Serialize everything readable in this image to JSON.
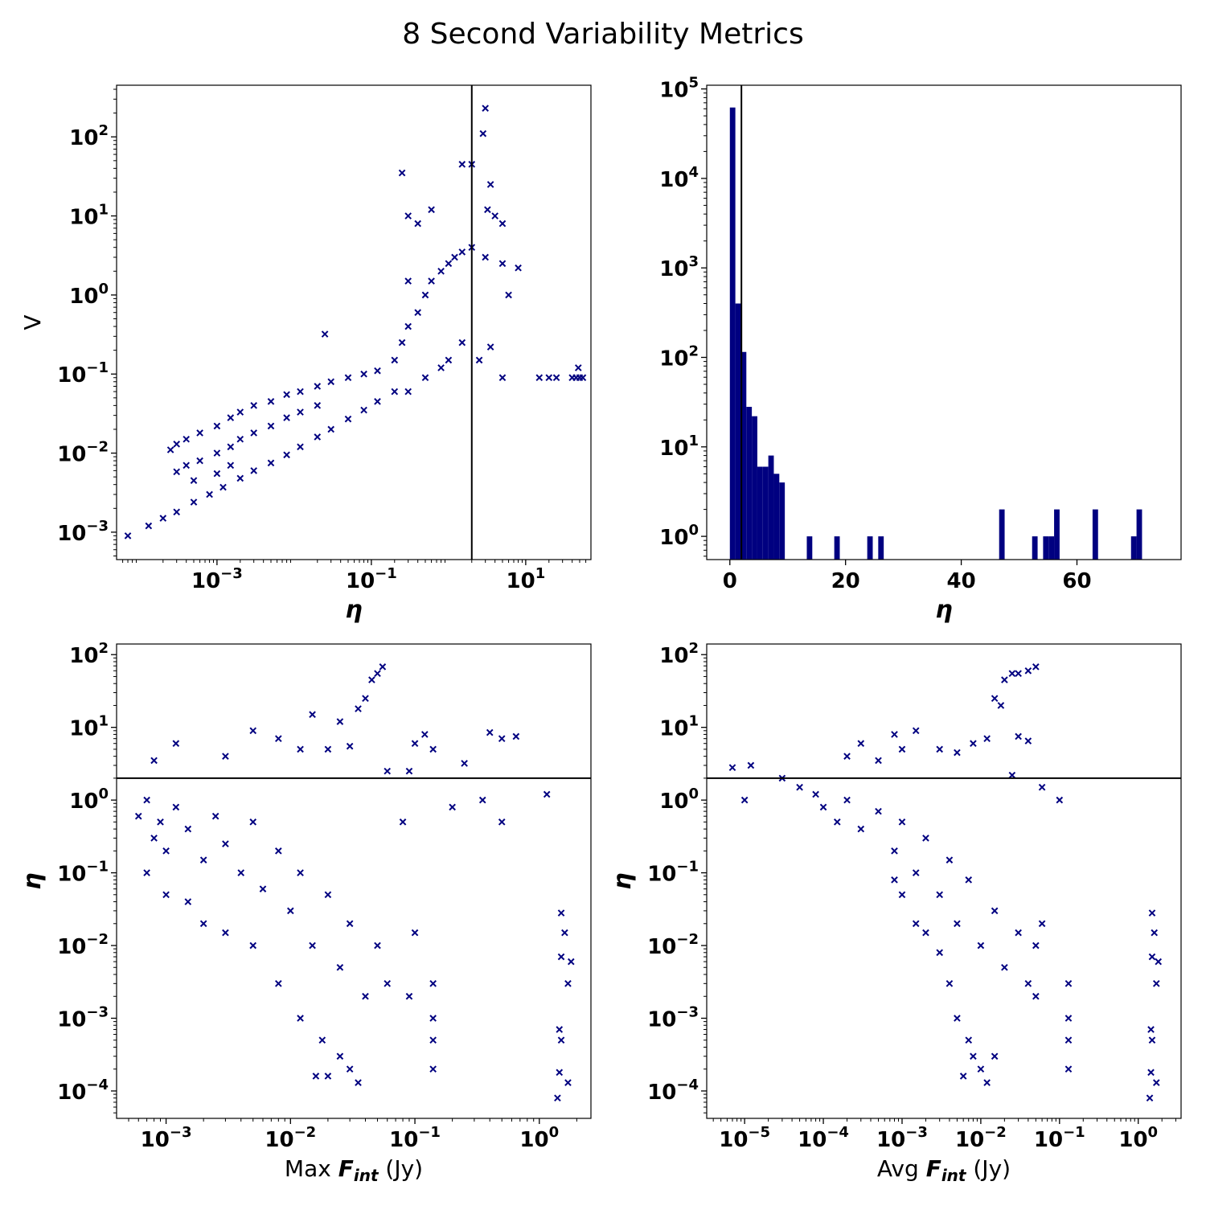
{
  "figure": {
    "title": "8 Second Variability Metrics",
    "marker_color": "#000080",
    "line_color": "#000000"
  },
  "chart_data": [
    {
      "id": "p1",
      "type": "scatter",
      "xscale": "log",
      "yscale": "log",
      "xlim": [
        5e-05,
        70
      ],
      "ylim": [
        0.00045,
        450
      ],
      "xlabel": "η",
      "ylabel": "V",
      "xticks": [
        {
          "v": 0.001,
          "base": "10",
          "exp": "−3"
        },
        {
          "v": 0.1,
          "base": "10",
          "exp": "−1"
        },
        {
          "v": 10,
          "base": "10",
          "exp": "1"
        }
      ],
      "yticks": [
        {
          "v": 0.001,
          "base": "10",
          "exp": "−3"
        },
        {
          "v": 0.01,
          "base": "10",
          "exp": "−2"
        },
        {
          "v": 0.1,
          "base": "10",
          "exp": "−1"
        },
        {
          "v": 1,
          "base": "10",
          "exp": "0"
        },
        {
          "v": 10,
          "base": "10",
          "exp": "1"
        },
        {
          "v": 100,
          "base": "10",
          "exp": "2"
        }
      ],
      "vline": 2,
      "marker": "x",
      "points": [
        [
          7e-05,
          0.0009
        ],
        [
          0.00013,
          0.0012
        ],
        [
          0.0002,
          0.0015
        ],
        [
          0.0003,
          0.0018
        ],
        [
          0.0005,
          0.0024
        ],
        [
          0.0008,
          0.003
        ],
        [
          0.0012,
          0.0037
        ],
        [
          0.002,
          0.0048
        ],
        [
          0.003,
          0.006
        ],
        [
          0.005,
          0.0075
        ],
        [
          0.008,
          0.0095
        ],
        [
          0.012,
          0.012
        ],
        [
          0.02,
          0.016
        ],
        [
          0.03,
          0.02
        ],
        [
          0.05,
          0.027
        ],
        [
          0.08,
          0.035
        ],
        [
          0.12,
          0.045
        ],
        [
          0.2,
          0.06
        ],
        [
          0.00025,
          0.011
        ],
        [
          0.0003,
          0.013
        ],
        [
          0.0004,
          0.015
        ],
        [
          0.0006,
          0.018
        ],
        [
          0.001,
          0.022
        ],
        [
          0.0015,
          0.028
        ],
        [
          0.002,
          0.033
        ],
        [
          0.003,
          0.04
        ],
        [
          0.005,
          0.045
        ],
        [
          0.008,
          0.055
        ],
        [
          0.012,
          0.06
        ],
        [
          0.02,
          0.07
        ],
        [
          0.03,
          0.08
        ],
        [
          0.05,
          0.09
        ],
        [
          0.08,
          0.1
        ],
        [
          0.12,
          0.11
        ],
        [
          0.0004,
          0.007
        ],
        [
          0.0006,
          0.008
        ],
        [
          0.001,
          0.01
        ],
        [
          0.0015,
          0.012
        ],
        [
          0.002,
          0.015
        ],
        [
          0.003,
          0.018
        ],
        [
          0.005,
          0.022
        ],
        [
          0.008,
          0.028
        ],
        [
          0.012,
          0.033
        ],
        [
          0.02,
          0.04
        ],
        [
          0.0003,
          0.0058
        ],
        [
          0.0005,
          0.0045
        ],
        [
          0.001,
          0.0055
        ],
        [
          0.0015,
          0.007
        ],
        [
          0.025,
          0.32
        ],
        [
          0.2,
          0.15
        ],
        [
          0.25,
          0.25
        ],
        [
          0.3,
          0.4
        ],
        [
          0.4,
          0.6
        ],
        [
          0.5,
          1.0
        ],
        [
          0.6,
          1.5
        ],
        [
          0.8,
          2.0
        ],
        [
          1.0,
          2.5
        ],
        [
          1.2,
          3.0
        ],
        [
          1.5,
          3.5
        ],
        [
          2.0,
          4.0
        ],
        [
          3.0,
          3.0
        ],
        [
          5.0,
          2.5
        ],
        [
          8.0,
          2.2
        ],
        [
          6.0,
          1.0
        ],
        [
          0.3,
          0.06
        ],
        [
          0.5,
          0.09
        ],
        [
          0.8,
          0.12
        ],
        [
          1.0,
          0.15
        ],
        [
          1.5,
          0.25
        ],
        [
          2.5,
          0.15
        ],
        [
          3.5,
          0.22
        ],
        [
          5.0,
          0.09
        ],
        [
          0.3,
          1.5
        ],
        [
          0.4,
          8
        ],
        [
          0.6,
          12
        ],
        [
          0.3,
          10
        ],
        [
          0.25,
          35
        ],
        [
          1.5,
          45
        ],
        [
          2.0,
          45
        ],
        [
          3.0,
          230
        ],
        [
          2.8,
          110
        ],
        [
          3.5,
          25
        ],
        [
          3.2,
          12
        ],
        [
          4.0,
          10
        ],
        [
          5.0,
          8
        ],
        [
          15,
          0.09
        ],
        [
          20,
          0.09
        ],
        [
          25,
          0.09
        ],
        [
          40,
          0.09
        ],
        [
          45,
          0.09
        ],
        [
          50,
          0.09
        ],
        [
          55,
          0.09
        ],
        [
          48,
          0.12
        ]
      ]
    },
    {
      "id": "p2",
      "type": "bar",
      "xscale": "linear",
      "yscale": "log",
      "xlim": [
        -4,
        78
      ],
      "ylim": [
        0.55,
        110000
      ],
      "xlabel": "η",
      "xticks": [
        {
          "v": 0,
          "text": "0"
        },
        {
          "v": 20,
          "text": "20"
        },
        {
          "v": 40,
          "text": "40"
        },
        {
          "v": 60,
          "text": "60"
        }
      ],
      "yticks": [
        {
          "v": 1,
          "base": "10",
          "exp": "0"
        },
        {
          "v": 10,
          "base": "10",
          "exp": "1"
        },
        {
          "v": 100,
          "base": "10",
          "exp": "2"
        },
        {
          "v": 1000,
          "base": "10",
          "exp": "3"
        },
        {
          "v": 10000,
          "base": "10",
          "exp": "4"
        },
        {
          "v": 100000,
          "base": "10",
          "exp": "5"
        }
      ],
      "vline": 2,
      "bin_width": 0.95,
      "bins": [
        {
          "x": 0,
          "count": 62000
        },
        {
          "x": 0.95,
          "count": 400
        },
        {
          "x": 1.9,
          "count": 115
        },
        {
          "x": 2.85,
          "count": 28
        },
        {
          "x": 3.8,
          "count": 22
        },
        {
          "x": 4.75,
          "count": 6
        },
        {
          "x": 5.7,
          "count": 6
        },
        {
          "x": 6.65,
          "count": 8
        },
        {
          "x": 7.6,
          "count": 5
        },
        {
          "x": 8.55,
          "count": 4
        },
        {
          "x": 13.3,
          "count": 1
        },
        {
          "x": 18.05,
          "count": 1
        },
        {
          "x": 23.75,
          "count": 1
        },
        {
          "x": 25.65,
          "count": 1
        },
        {
          "x": 46.55,
          "count": 2
        },
        {
          "x": 52.25,
          "count": 1
        },
        {
          "x": 54.15,
          "count": 1
        },
        {
          "x": 55.1,
          "count": 1
        },
        {
          "x": 56.05,
          "count": 2
        },
        {
          "x": 62.7,
          "count": 2
        },
        {
          "x": 69.35,
          "count": 1
        },
        {
          "x": 70.3,
          "count": 2
        }
      ]
    },
    {
      "id": "p3",
      "type": "scatter",
      "xscale": "log",
      "yscale": "log",
      "xlim": [
        0.0004,
        2.6
      ],
      "ylim": [
        4.2e-05,
        140
      ],
      "xlabel_prefix": "Max ",
      "xlabel_var": "F",
      "xlabel_sub": "int",
      "xlabel_unit": " (Jy)",
      "ylabel": "η",
      "xticks": [
        {
          "v": 0.001,
          "base": "10",
          "exp": "−3"
        },
        {
          "v": 0.01,
          "base": "10",
          "exp": "−2"
        },
        {
          "v": 0.1,
          "base": "10",
          "exp": "−1"
        },
        {
          "v": 1,
          "base": "10",
          "exp": "0"
        }
      ],
      "yticks": [
        {
          "v": 0.0001,
          "base": "10",
          "exp": "−4"
        },
        {
          "v": 0.001,
          "base": "10",
          "exp": "−3"
        },
        {
          "v": 0.01,
          "base": "10",
          "exp": "−2"
        },
        {
          "v": 0.1,
          "base": "10",
          "exp": "−1"
        },
        {
          "v": 1,
          "base": "10",
          "exp": "0"
        },
        {
          "v": 10,
          "base": "10",
          "exp": "1"
        },
        {
          "v": 100,
          "base": "10",
          "exp": "2"
        }
      ],
      "hline": 2,
      "marker": "x",
      "points": [
        [
          0.0006,
          0.6
        ],
        [
          0.0007,
          1.0
        ],
        [
          0.0008,
          0.3
        ],
        [
          0.0009,
          0.5
        ],
        [
          0.001,
          0.2
        ],
        [
          0.0012,
          0.8
        ],
        [
          0.0015,
          0.4
        ],
        [
          0.002,
          0.15
        ],
        [
          0.0025,
          0.6
        ],
        [
          0.003,
          0.25
        ],
        [
          0.004,
          0.1
        ],
        [
          0.005,
          0.5
        ],
        [
          0.006,
          0.06
        ],
        [
          0.008,
          0.2
        ],
        [
          0.01,
          0.03
        ],
        [
          0.012,
          0.1
        ],
        [
          0.015,
          0.01
        ],
        [
          0.02,
          0.05
        ],
        [
          0.025,
          0.005
        ],
        [
          0.03,
          0.02
        ],
        [
          0.04,
          0.002
        ],
        [
          0.05,
          0.01
        ],
        [
          0.06,
          0.003
        ],
        [
          0.0007,
          0.1
        ],
        [
          0.001,
          0.05
        ],
        [
          0.0015,
          0.04
        ],
        [
          0.002,
          0.02
        ],
        [
          0.003,
          0.015
        ],
        [
          0.005,
          0.01
        ],
        [
          0.008,
          0.003
        ],
        [
          0.012,
          0.001
        ],
        [
          0.018,
          0.0005
        ],
        [
          0.02,
          0.00016
        ],
        [
          0.025,
          0.0003
        ],
        [
          0.03,
          0.0002
        ],
        [
          0.035,
          0.00013
        ],
        [
          0.016,
          0.00016
        ],
        [
          0.0008,
          3.5
        ],
        [
          0.0012,
          6.0
        ],
        [
          0.003,
          4.0
        ],
        [
          0.005,
          9.0
        ],
        [
          0.008,
          7.0
        ],
        [
          0.012,
          5.0
        ],
        [
          0.02,
          5.0
        ],
        [
          0.03,
          5.5
        ],
        [
          0.04,
          25
        ],
        [
          0.045,
          45
        ],
        [
          0.05,
          55
        ],
        [
          0.055,
          68
        ],
        [
          0.035,
          18
        ],
        [
          0.025,
          12
        ],
        [
          0.015,
          15
        ],
        [
          0.1,
          6
        ],
        [
          0.12,
          8
        ],
        [
          0.14,
          5
        ],
        [
          0.09,
          2.5
        ],
        [
          0.2,
          0.8
        ],
        [
          0.25,
          3.2
        ],
        [
          0.35,
          1.0
        ],
        [
          0.4,
          8.5
        ],
        [
          0.5,
          7.0
        ],
        [
          0.65,
          7.5
        ],
        [
          0.5,
          0.5
        ],
        [
          1.15,
          1.2
        ],
        [
          0.08,
          0.5
        ],
        [
          0.06,
          2.5
        ],
        [
          0.14,
          0.003
        ],
        [
          0.14,
          0.001
        ],
        [
          0.14,
          0.0005
        ],
        [
          0.14,
          0.0002
        ],
        [
          0.1,
          0.015
        ],
        [
          0.09,
          0.002
        ],
        [
          1.5,
          0.028
        ],
        [
          1.6,
          0.015
        ],
        [
          1.5,
          0.007
        ],
        [
          1.7,
          0.003
        ],
        [
          1.45,
          0.0007
        ],
        [
          1.5,
          0.0005
        ],
        [
          1.45,
          0.00018
        ],
        [
          1.7,
          0.00013
        ],
        [
          1.4,
          8e-05
        ],
        [
          1.8,
          0.006
        ]
      ]
    },
    {
      "id": "p4",
      "type": "scatter",
      "xscale": "log",
      "yscale": "log",
      "xlim": [
        3.3e-06,
        3.5
      ],
      "ylim": [
        4.2e-05,
        140
      ],
      "xlabel_prefix": "Avg ",
      "xlabel_var": "F",
      "xlabel_sub": "int",
      "xlabel_unit": " (Jy)",
      "ylabel": "η",
      "xticks": [
        {
          "v": 1e-05,
          "base": "10",
          "exp": "−5"
        },
        {
          "v": 0.0001,
          "base": "10",
          "exp": "−4"
        },
        {
          "v": 0.001,
          "base": "10",
          "exp": "−3"
        },
        {
          "v": 0.01,
          "base": "10",
          "exp": "−2"
        },
        {
          "v": 0.1,
          "base": "10",
          "exp": "−1"
        },
        {
          "v": 1,
          "base": "10",
          "exp": "0"
        }
      ],
      "yticks": [
        {
          "v": 0.0001,
          "base": "10",
          "exp": "−4"
        },
        {
          "v": 0.001,
          "base": "10",
          "exp": "−3"
        },
        {
          "v": 0.01,
          "base": "10",
          "exp": "−2"
        },
        {
          "v": 0.1,
          "base": "10",
          "exp": "−1"
        },
        {
          "v": 1,
          "base": "10",
          "exp": "0"
        },
        {
          "v": 10,
          "base": "10",
          "exp": "1"
        },
        {
          "v": 100,
          "base": "10",
          "exp": "2"
        }
      ],
      "hline": 2,
      "marker": "x",
      "points": [
        [
          7e-06,
          2.8
        ],
        [
          1e-05,
          1.0
        ],
        [
          1.2e-05,
          3.0
        ],
        [
          3e-05,
          2.0
        ],
        [
          5e-05,
          1.5
        ],
        [
          8e-05,
          1.2
        ],
        [
          0.0001,
          0.8
        ],
        [
          0.00015,
          0.5
        ],
        [
          0.0002,
          1.0
        ],
        [
          0.0003,
          0.4
        ],
        [
          0.0005,
          0.7
        ],
        [
          0.0008,
          0.2
        ],
        [
          0.001,
          0.5
        ],
        [
          0.0015,
          0.1
        ],
        [
          0.002,
          0.3
        ],
        [
          0.003,
          0.05
        ],
        [
          0.004,
          0.15
        ],
        [
          0.005,
          0.02
        ],
        [
          0.007,
          0.08
        ],
        [
          0.01,
          0.01
        ],
        [
          0.015,
          0.03
        ],
        [
          0.02,
          0.005
        ],
        [
          0.03,
          0.015
        ],
        [
          0.04,
          0.003
        ],
        [
          0.05,
          0.01
        ],
        [
          0.0008,
          0.08
        ],
        [
          0.001,
          0.05
        ],
        [
          0.0015,
          0.02
        ],
        [
          0.002,
          0.015
        ],
        [
          0.003,
          0.008
        ],
        [
          0.004,
          0.003
        ],
        [
          0.005,
          0.001
        ],
        [
          0.007,
          0.0005
        ],
        [
          0.006,
          0.00016
        ],
        [
          0.008,
          0.0003
        ],
        [
          0.01,
          0.0002
        ],
        [
          0.012,
          0.00013
        ],
        [
          0.015,
          0.0003
        ],
        [
          0.0002,
          4.0
        ],
        [
          0.0003,
          6.0
        ],
        [
          0.0005,
          3.5
        ],
        [
          0.0008,
          8.0
        ],
        [
          0.001,
          5.0
        ],
        [
          0.0015,
          9.0
        ],
        [
          0.003,
          5.0
        ],
        [
          0.005,
          4.5
        ],
        [
          0.008,
          6.0
        ],
        [
          0.012,
          7.0
        ],
        [
          0.015,
          25
        ],
        [
          0.02,
          45
        ],
        [
          0.025,
          55
        ],
        [
          0.03,
          55
        ],
        [
          0.04,
          60
        ],
        [
          0.05,
          68
        ],
        [
          0.018,
          20
        ],
        [
          0.03,
          7.5
        ],
        [
          0.04,
          6.5
        ],
        [
          0.06,
          1.5
        ],
        [
          0.1,
          1.0
        ],
        [
          0.025,
          2.2
        ],
        [
          0.13,
          0.003
        ],
        [
          0.13,
          0.001
        ],
        [
          0.13,
          0.0005
        ],
        [
          0.13,
          0.0002
        ],
        [
          0.06,
          0.02
        ],
        [
          0.05,
          0.002
        ],
        [
          1.5,
          0.028
        ],
        [
          1.6,
          0.015
        ],
        [
          1.5,
          0.007
        ],
        [
          1.7,
          0.003
        ],
        [
          1.45,
          0.0007
        ],
        [
          1.5,
          0.0005
        ],
        [
          1.45,
          0.00018
        ],
        [
          1.7,
          0.00013
        ],
        [
          1.4,
          8e-05
        ],
        [
          1.8,
          0.006
        ]
      ]
    }
  ]
}
